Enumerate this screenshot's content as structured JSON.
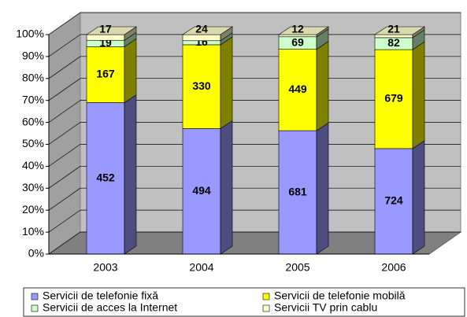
{
  "chart_data": {
    "type": "bar",
    "stacked_percent": true,
    "categories": [
      "2003",
      "2004",
      "2005",
      "2006"
    ],
    "series": [
      {
        "name": "Servicii de telefonie fixă",
        "color": "#9999ff",
        "values": [
          452,
          494,
          681,
          724
        ]
      },
      {
        "name": "Servicii de telefonie mobilă",
        "color": "#ffff00",
        "values": [
          167,
          330,
          449,
          679
        ]
      },
      {
        "name": "Servicii de acces la Internet",
        "color": "#ccffcc",
        "values": [
          19,
          16,
          69,
          82
        ]
      },
      {
        "name": "Servicii TV prin cablu",
        "color": "#ffffcc",
        "values": [
          17,
          24,
          12,
          21
        ]
      }
    ],
    "ylim": [
      0,
      100
    ],
    "yticks": [
      {
        "value": 0,
        "label": "0%"
      },
      {
        "value": 10,
        "label": "10%"
      },
      {
        "value": 20,
        "label": "20%"
      },
      {
        "value": 30,
        "label": "30%"
      },
      {
        "value": 40,
        "label": "40%"
      },
      {
        "value": 50,
        "label": "50%"
      },
      {
        "value": 60,
        "label": "60%"
      },
      {
        "value": 70,
        "label": "70%"
      },
      {
        "value": 80,
        "label": "80%"
      },
      {
        "value": 90,
        "label": "90%"
      },
      {
        "value": 100,
        "label": "100%"
      }
    ],
    "grid": true
  }
}
